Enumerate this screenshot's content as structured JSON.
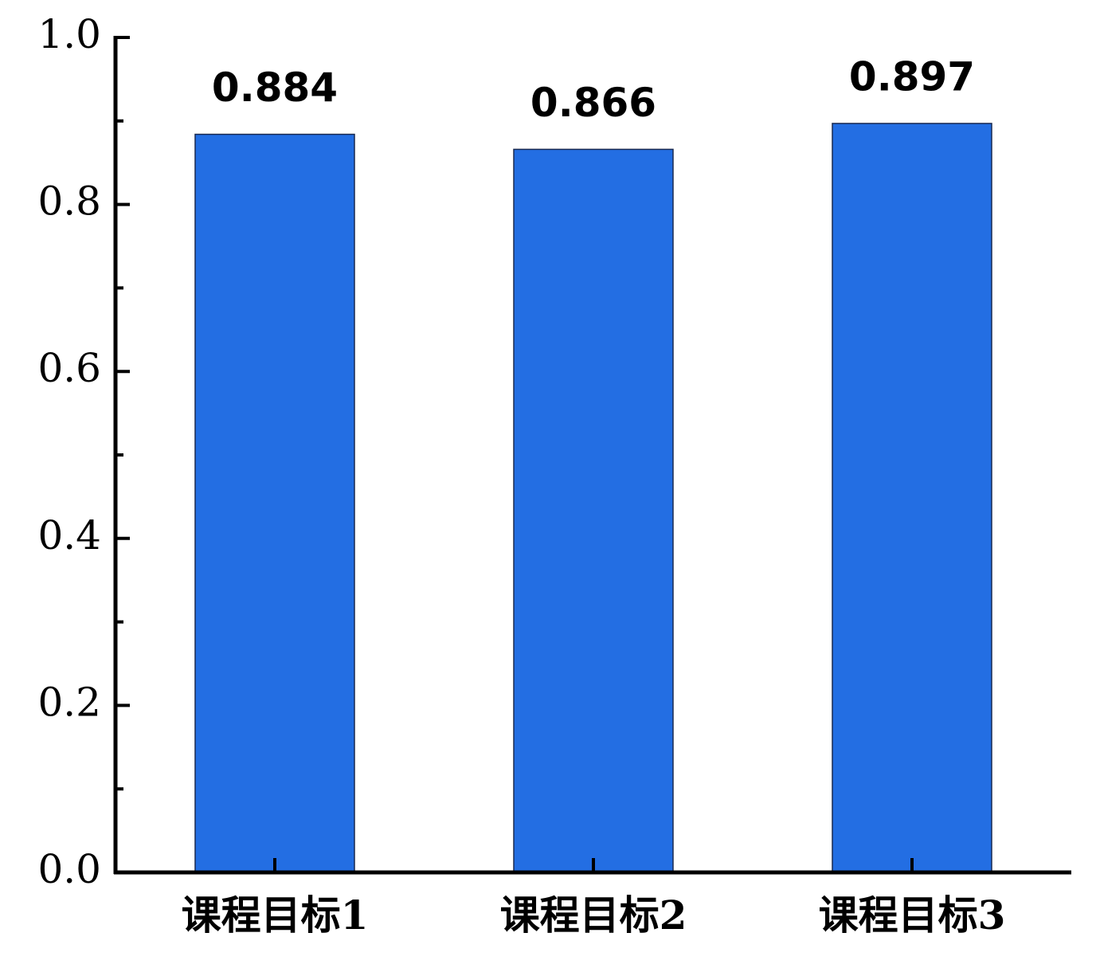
{
  "chart_data": {
    "type": "bar",
    "categories": [
      "课程目标1",
      "课程目标2",
      "课程目标3"
    ],
    "values": [
      0.884,
      0.866,
      0.897
    ],
    "color": "#236ee3",
    "ylim": [
      0,
      1.0
    ],
    "yticks": [
      {
        "value": 0,
        "label": "0.0"
      },
      0.2,
      0.4,
      0.6,
      0.8,
      {
        "value": 1.0,
        "label": "1.0"
      }
    ],
    "yminorticks": [
      0.1,
      0.3,
      0.5,
      0.7,
      0.9
    ],
    "grid": false
  }
}
